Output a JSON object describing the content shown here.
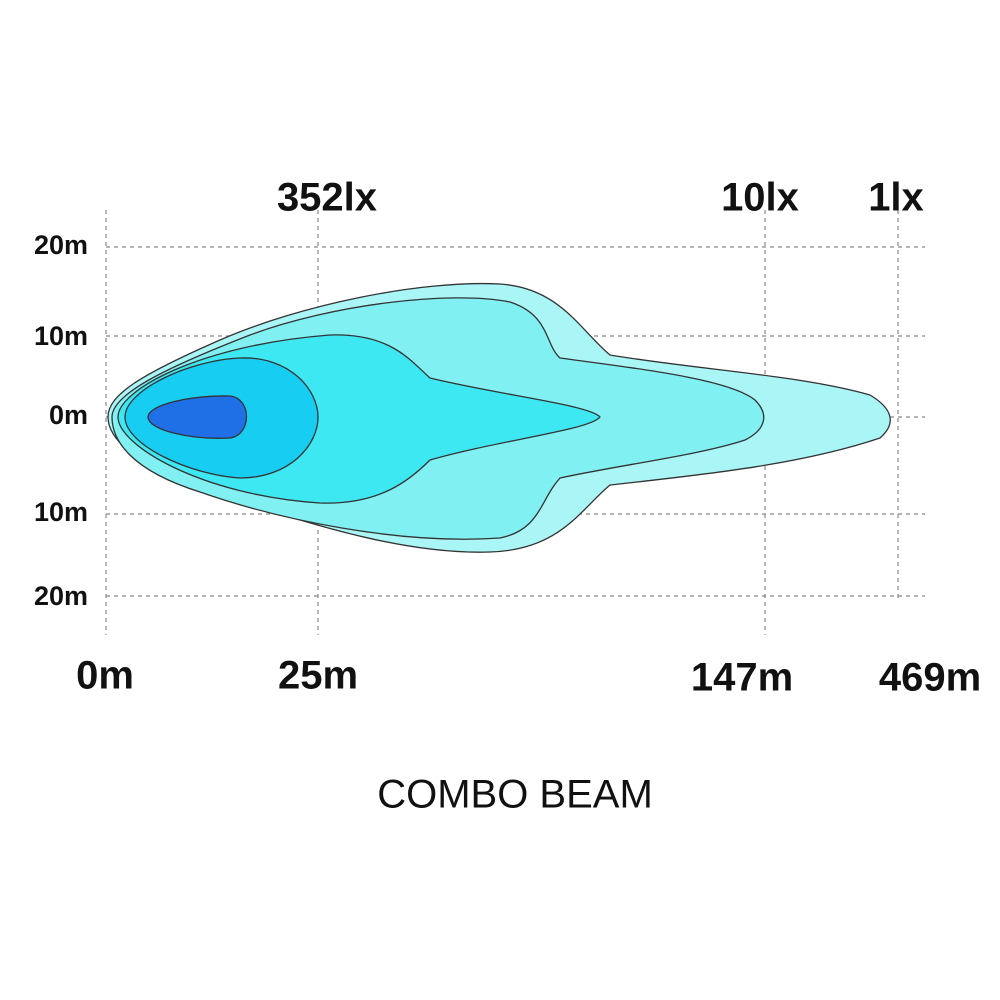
{
  "lux_labels": [
    "352lx",
    "10lx",
    "1lx"
  ],
  "y_labels": [
    "20m",
    "10m",
    "0m",
    "10m",
    "20m"
  ],
  "x_labels": [
    "0m",
    "25m",
    "147m",
    "469m"
  ],
  "title": "COMBO BEAM"
}
